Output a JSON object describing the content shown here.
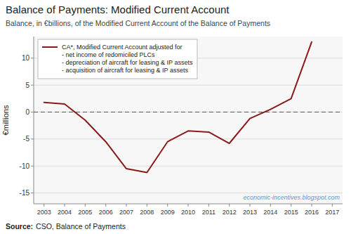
{
  "chart_data": {
    "type": "line",
    "title": "Balance of Payments: Modified Current Account",
    "subtitle": "Balance, in €billions, of the Modified Current Account of the Balance of Payments",
    "source_label": "Source:",
    "source": "CSO, Balance of Payments",
    "watermark": "economic-incentives.blogspot.com",
    "ylabel": "€millions",
    "x": [
      2003,
      2004,
      2005,
      2006,
      2007,
      2008,
      2009,
      2010,
      2011,
      2012,
      2013,
      2014,
      2015,
      2016
    ],
    "series": [
      {
        "name": "CA*, Modified Current Account adjusted for\n- net income of redomiciled PLCs\n- depreciation of aircraft for leasing & IP assets\n- acquisition of aircraft for leasing & IP assets",
        "color": "#8B1A1A",
        "values": [
          1.8,
          1.5,
          -1.5,
          -5.5,
          -10.5,
          -11.2,
          -5.5,
          -3.5,
          -3.7,
          -5.8,
          -1.2,
          0.5,
          2.5,
          13.0
        ]
      }
    ],
    "hlines": [
      0
    ],
    "xlim": [
      2002.5,
      2017.5
    ],
    "xticks": [
      2003,
      2004,
      2005,
      2006,
      2007,
      2008,
      2009,
      2010,
      2011,
      2012,
      2013,
      2014,
      2015,
      2016,
      2017
    ],
    "ylim": [
      -17,
      14
    ],
    "yticks": [
      -15,
      -10,
      -5,
      0,
      5,
      10
    ],
    "grid": true,
    "legend": "upper left"
  }
}
